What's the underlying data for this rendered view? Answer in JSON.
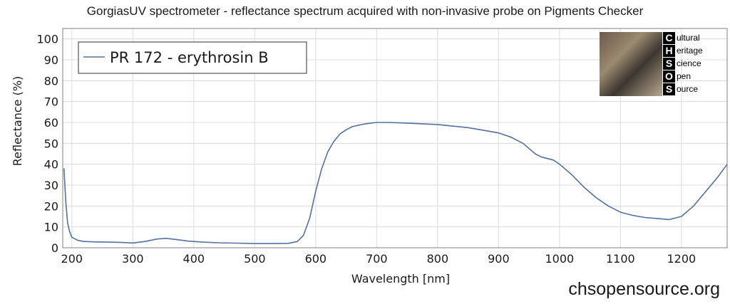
{
  "chart_data": {
    "type": "line",
    "title": "GorgiasUV spectrometer - reflectance spectrum acquired with non-invasive probe on Pigments Checker",
    "xlabel": "Wavelength [nm]",
    "ylabel": "Reflectance (%)",
    "xlim": [
      185,
      1275
    ],
    "ylim": [
      0,
      105
    ],
    "xticks": [
      200,
      300,
      400,
      500,
      600,
      700,
      800,
      900,
      1000,
      1100,
      1200
    ],
    "yticks": [
      0,
      10,
      20,
      30,
      40,
      50,
      60,
      70,
      80,
      90,
      100
    ],
    "grid": true,
    "legend_position": "top-left",
    "line_color": "#5470a0",
    "series": [
      {
        "name": "PR 172 - erythrosin B",
        "x": [
          187,
          190,
          193,
          196,
          200,
          210,
          220,
          240,
          260,
          280,
          300,
          320,
          340,
          355,
          370,
          390,
          410,
          440,
          470,
          500,
          530,
          555,
          570,
          580,
          590,
          600,
          610,
          620,
          630,
          640,
          650,
          660,
          680,
          700,
          720,
          750,
          800,
          850,
          880,
          900,
          920,
          940,
          960,
          970,
          990,
          1000,
          1020,
          1040,
          1060,
          1080,
          1100,
          1120,
          1140,
          1160,
          1180,
          1200,
          1220,
          1240,
          1260,
          1275
        ],
        "y": [
          38,
          22,
          12,
          8,
          5,
          3.5,
          3,
          2.8,
          2.7,
          2.6,
          2.3,
          3,
          4.2,
          4.5,
          4,
          3.2,
          2.8,
          2.4,
          2.2,
          2,
          2,
          2.1,
          3,
          6,
          14,
          27,
          38,
          46,
          51,
          54.5,
          56.5,
          58,
          59.3,
          60,
          60,
          59.7,
          59,
          57.5,
          56,
          55,
          53,
          50,
          45,
          43.5,
          42,
          40,
          35,
          29,
          24,
          20,
          17,
          15.5,
          14.5,
          14,
          13.5,
          15,
          20,
          27,
          34,
          40
        ]
      }
    ]
  },
  "logo": {
    "letters": [
      "C",
      "H",
      "S",
      "O",
      "S"
    ],
    "words": [
      "ultural",
      "eritage",
      "cience",
      "pen",
      "ource"
    ]
  },
  "website": "chsopensource.org"
}
